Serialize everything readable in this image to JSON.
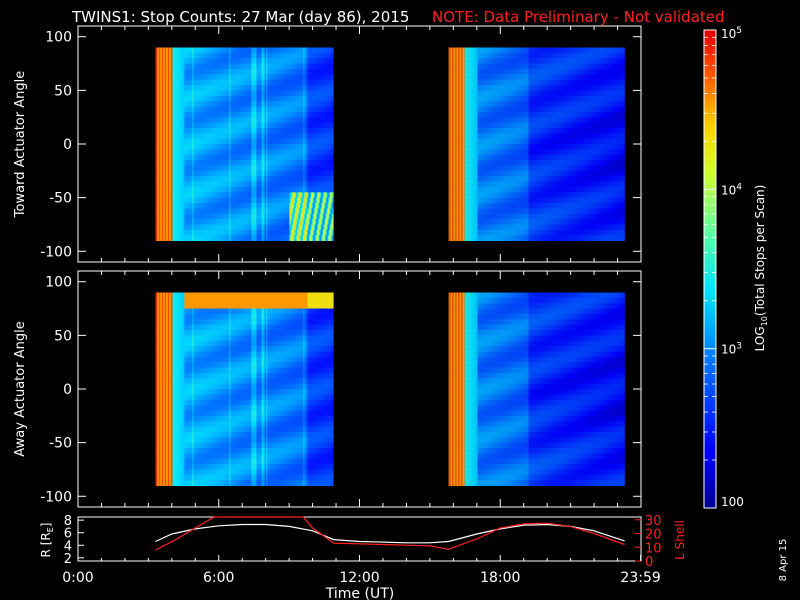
{
  "header": {
    "title": "TWINS1: Stop Counts: 27 Mar (day  86), 2015",
    "note": "NOTE: Data Preliminary - Not validated",
    "title_color": "#ffffff",
    "note_color": "#ff2020"
  },
  "side_date": "8 Apr 15",
  "chart_data": [
    {
      "type": "heatmap",
      "name": "toward-panel",
      "ylabel": "Toward Actuator Angle",
      "ylim": [
        -110,
        110
      ],
      "yticks": [
        100,
        50,
        0,
        -50,
        -100
      ],
      "xlim": [
        0,
        24
      ],
      "angle_range": [
        -90,
        90
      ],
      "data_blocks": [
        {
          "x_start": 3.3,
          "x_end": 10.9
        },
        {
          "x_start": 15.8,
          "x_end": 23.3
        }
      ],
      "variant": "toward"
    },
    {
      "type": "heatmap",
      "name": "away-panel",
      "ylabel": "Away Actuator Angle",
      "ylim": [
        -110,
        110
      ],
      "yticks": [
        100,
        50,
        0,
        -50,
        -100
      ],
      "xlim": [
        0,
        24
      ],
      "angle_range": [
        -90,
        90
      ],
      "data_blocks": [
        {
          "x_start": 3.3,
          "x_end": 10.9
        },
        {
          "x_start": 15.8,
          "x_end": 23.3
        }
      ],
      "variant": "away"
    },
    {
      "type": "line",
      "name": "orbit-panel",
      "xlabel": "Time (UT)",
      "xticks": [
        "0:00",
        "6:00",
        "12:00",
        "18:00",
        "23:59"
      ],
      "xlim": [
        0,
        24
      ],
      "left_ylabel": "R [R",
      "left_ylabel_sub": "E",
      "left_ylabel_end": "]",
      "left_ylim": [
        1.5,
        8.5
      ],
      "left_yticks": [
        8,
        6,
        4,
        2
      ],
      "right_ylabel": "L Shell",
      "right_ylim": [
        0,
        32
      ],
      "right_yticks": [
        30,
        20,
        10,
        0
      ],
      "series": [
        {
          "axis": "left",
          "color": "#ffffff",
          "x": [
            3.3,
            4.0,
            5.0,
            6.0,
            7.0,
            8.0,
            9.0,
            10.0,
            10.9,
            12.0,
            13.0,
            14.0,
            15.0,
            15.8,
            17.0,
            18.0,
            19.0,
            20.0,
            21.0,
            22.0,
            23.3
          ],
          "y": [
            4.6,
            5.8,
            6.6,
            7.1,
            7.3,
            7.3,
            7.0,
            6.3,
            4.9,
            4.6,
            4.5,
            4.4,
            4.4,
            4.6,
            5.8,
            6.6,
            7.2,
            7.3,
            7.0,
            6.3,
            4.7
          ]
        },
        {
          "axis": "right",
          "color": "#ff2020",
          "x": [
            3.3,
            4.0,
            5.0,
            5.8,
            9.6,
            10.0,
            10.9,
            12.0,
            13.0,
            14.0,
            15.0,
            15.8,
            17.0,
            18.0,
            19.0,
            20.0,
            21.0,
            22.0,
            23.3
          ],
          "y": [
            8,
            14,
            24,
            32,
            32,
            24,
            13,
            12.5,
            12,
            11.5,
            11,
            8.5,
            16,
            24,
            27,
            27.5,
            25,
            20,
            12
          ]
        }
      ]
    },
    {
      "type": "colorbar",
      "name": "colorbar",
      "label": "LOG",
      "label_sub": "10",
      "label_rest": "(Total Stops per Scan)",
      "scale": "log",
      "range": [
        100,
        100000
      ],
      "ticks": [
        {
          "value": 100000,
          "base": "10",
          "exp": "5"
        },
        {
          "value": 10000,
          "base": "10",
          "exp": "4"
        },
        {
          "value": 1000,
          "base": "10",
          "exp": "3"
        },
        {
          "value": 100,
          "label": "100"
        }
      ]
    }
  ]
}
